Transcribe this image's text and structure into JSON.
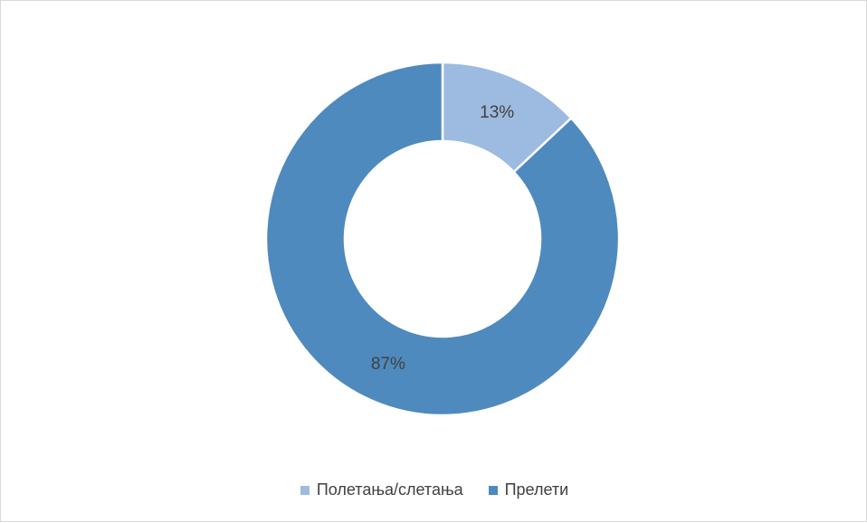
{
  "chart_data": {
    "type": "pie",
    "variant": "donut",
    "title": "",
    "categories": [
      "Полетања/слетања",
      "Прелети"
    ],
    "values": [
      13,
      87
    ],
    "data_labels": [
      "13%",
      "87%"
    ],
    "colors": [
      "#9dbbe0",
      "#4f8abe"
    ],
    "legend_position": "bottom"
  }
}
